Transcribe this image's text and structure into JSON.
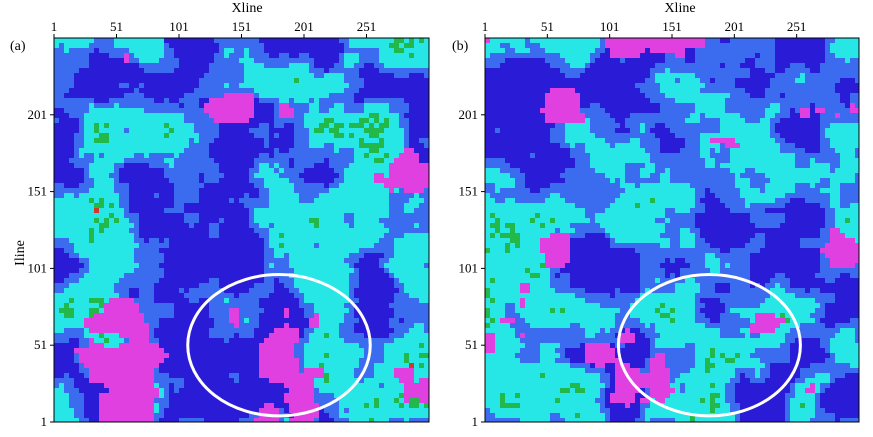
{
  "chart_data": [
    {
      "type": "heatmap",
      "panel_label": "(a)",
      "xlabel": "Xline",
      "ylabel": "Iline",
      "x_ticks": [
        "1",
        "51",
        "101",
        "151",
        "201",
        "251"
      ],
      "y_ticks": [
        "1",
        "51",
        "101",
        "151",
        "201"
      ],
      "xlim": [
        1,
        301
      ],
      "ylim": [
        1,
        251
      ],
      "colormap": [
        "#2a1bd6",
        "#3b6cf0",
        "#27e6e6",
        "#22b84a",
        "#d0382a",
        "#e040e0"
      ],
      "ellipse": {
        "center": [
          181,
          51
        ],
        "radius": [
          73,
          46
        ]
      }
    },
    {
      "type": "heatmap",
      "panel_label": "(b)",
      "xlabel": "Xline",
      "ylabel": "",
      "x_ticks": [
        "1",
        "51",
        "101",
        "151",
        "201",
        "251"
      ],
      "y_ticks": [
        "1",
        "51",
        "101",
        "151",
        "201"
      ],
      "xlim": [
        1,
        301
      ],
      "ylim": [
        1,
        251
      ],
      "colormap": [
        "#2a1bd6",
        "#3b6cf0",
        "#27e6e6",
        "#22b84a",
        "#d0382a",
        "#e040e0"
      ],
      "ellipse": {
        "center": [
          181,
          51
        ],
        "radius": [
          73,
          46
        ]
      }
    }
  ]
}
